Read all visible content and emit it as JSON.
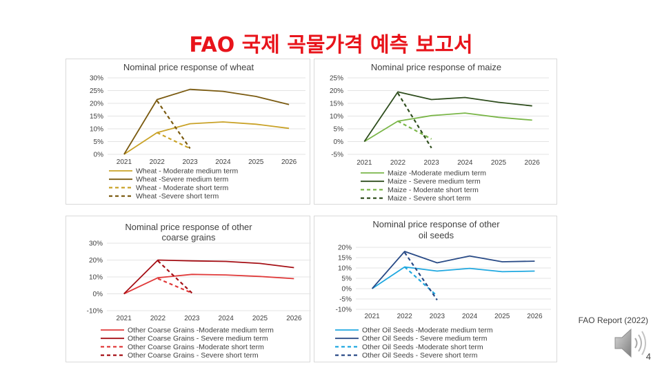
{
  "slide": {
    "title": "FAO 국제 곡물가격 예측 보고서",
    "source": "FAO Report (2022)",
    "page_number": "4",
    "speaker_icon": "speaker-icon"
  },
  "colors": {
    "title": "#e8141b",
    "wheat_light": "#c9a227",
    "wheat_dark": "#7a5a10",
    "maize_light": "#7ab648",
    "maize_dark": "#2e4d1d",
    "coarse_light": "#e03a3a",
    "coarse_dark": "#a50f15",
    "oil_light": "#1fa8e0",
    "oil_dark": "#284a86"
  },
  "chart_data": [
    {
      "type": "line",
      "title": [
        "Nominal price response of wheat"
      ],
      "x": [
        "2021",
        "2022",
        "2023",
        "2024",
        "2025",
        "2026"
      ],
      "yticks": [
        0,
        5,
        10,
        15,
        20,
        25,
        30
      ],
      "ytick_labels": [
        "0%",
        "5%",
        "10%",
        "15%",
        "20%",
        "25%",
        "30%"
      ],
      "ylim": [
        0,
        30
      ],
      "series": [
        {
          "name": "Wheat - Moderate medium term",
          "values": [
            0,
            8.5,
            12,
            12.7,
            11.8,
            10.2
          ],
          "color": "#c9a227",
          "dashed": false
        },
        {
          "name": "Wheat -Severe medium term",
          "values": [
            0,
            21.5,
            25.5,
            24.7,
            22.7,
            19.5
          ],
          "color": "#7a5a10",
          "dashed": false
        },
        {
          "name": "Wheat - Moderate short term",
          "values": [
            null,
            8.5,
            2.3,
            null,
            null,
            null
          ],
          "color": "#c9a227",
          "dashed": true
        },
        {
          "name": "Wheat -Severe short term",
          "values": [
            null,
            21,
            2.3,
            null,
            null,
            null
          ],
          "color": "#7a5a10",
          "dashed": true
        }
      ]
    },
    {
      "type": "line",
      "title": [
        "Nominal price response of maize"
      ],
      "x": [
        "2021",
        "2022",
        "2023",
        "2024",
        "2025",
        "2026"
      ],
      "yticks": [
        -5,
        0,
        5,
        10,
        15,
        20,
        25
      ],
      "ytick_labels": [
        "-5%",
        "0%",
        "5%",
        "10%",
        "15%",
        "20%",
        "25%"
      ],
      "ylim": [
        -5,
        25
      ],
      "series": [
        {
          "name": "Maize -Moderate medium term",
          "values": [
            0,
            8,
            10.2,
            11.2,
            9.5,
            8.4
          ],
          "color": "#7ab648",
          "dashed": false
        },
        {
          "name": "Maize - Severe medium term",
          "values": [
            0,
            19.5,
            16.5,
            17.3,
            15.4,
            14
          ],
          "color": "#2e4d1d",
          "dashed": false
        },
        {
          "name": "Maize - Moderate short term",
          "values": [
            null,
            8,
            1,
            null,
            null,
            null
          ],
          "color": "#7ab648",
          "dashed": true
        },
        {
          "name": "Maize - Severe short term",
          "values": [
            null,
            19,
            -2.5,
            null,
            null,
            null
          ],
          "color": "#2e4d1d",
          "dashed": true
        }
      ]
    },
    {
      "type": "line",
      "title": [
        "Nominal price response of other",
        "coarse grains"
      ],
      "x": [
        "2021",
        "2022",
        "2023",
        "2024",
        "2025",
        "2026"
      ],
      "yticks": [
        -10,
        0,
        10,
        20,
        30
      ],
      "ytick_labels": [
        "-10%",
        "0%",
        "10%",
        "20%",
        "30%"
      ],
      "ylim": [
        -10,
        30
      ],
      "series": [
        {
          "name": "Other Coarse Grains -Moderate medium term",
          "values": [
            0,
            9.5,
            11.5,
            11.2,
            10.3,
            9
          ],
          "color": "#e03a3a",
          "dashed": false
        },
        {
          "name": "Other Coarse Grains - Severe medium term",
          "values": [
            0,
            20,
            19.5,
            19.2,
            18,
            15.5
          ],
          "color": "#a50f15",
          "dashed": false
        },
        {
          "name": "Other Coarse Grains -Moderate short term",
          "values": [
            null,
            9,
            0.5,
            null,
            null,
            null
          ],
          "color": "#e03a3a",
          "dashed": true
        },
        {
          "name": "Other Coarse Grains - Severe short term",
          "values": [
            null,
            19.5,
            0.5,
            null,
            null,
            null
          ],
          "color": "#a50f15",
          "dashed": true
        }
      ]
    },
    {
      "type": "line",
      "title": [
        "Nominal price response of other",
        "oil seeds"
      ],
      "x": [
        "2021",
        "2022",
        "2023",
        "2024",
        "2025",
        "2026"
      ],
      "yticks": [
        -10,
        -5,
        0,
        5,
        10,
        15,
        20
      ],
      "ytick_labels": [
        "-10%",
        "-5%",
        "0%",
        "5%",
        "10%",
        "15%",
        "20%"
      ],
      "ylim": [
        -10,
        20
      ],
      "series": [
        {
          "name": "Other Oil Seeds -Moderate medium term",
          "values": [
            0,
            10.5,
            8.5,
            9.8,
            8.2,
            8.5
          ],
          "color": "#1fa8e0",
          "dashed": false
        },
        {
          "name": "Other Oil Seeds - Severe medium term",
          "values": [
            0,
            18,
            12.5,
            15.8,
            13,
            13.3
          ],
          "color": "#284a86",
          "dashed": false
        },
        {
          "name": "Other Oil Seeds -Moderate short term",
          "values": [
            null,
            10.5,
            -3.5,
            null,
            null,
            null
          ],
          "color": "#1fa8e0",
          "dashed": true
        },
        {
          "name": "Other Oil Seeds - Severe short term",
          "values": [
            null,
            17.5,
            -5.5,
            null,
            null,
            null
          ],
          "color": "#284a86",
          "dashed": true
        }
      ]
    }
  ]
}
